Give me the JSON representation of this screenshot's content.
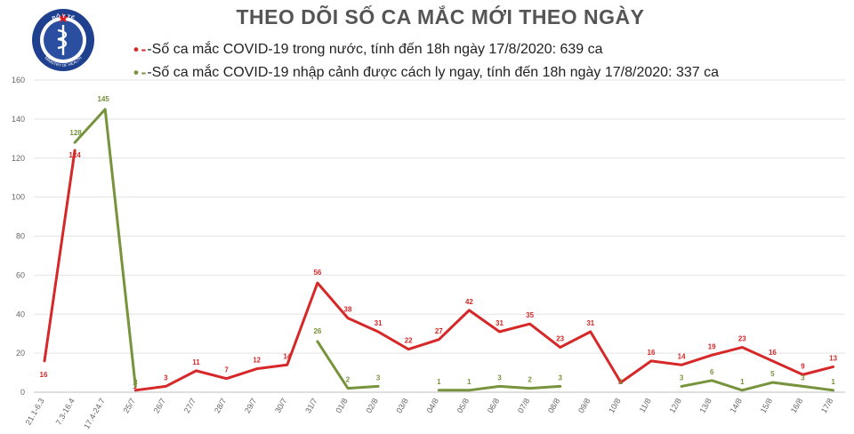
{
  "header": {
    "title": "THEO DÕI SỐ CA MẮC MỚI THEO NGÀY",
    "logo_text_top": "BỘ Y TẾ",
    "logo_text_bottom": "MINISTRY OF HEALTH"
  },
  "chart_data": {
    "type": "line",
    "title": "THEO DÕI SỐ CA MẮC MỚI THEO NGÀY",
    "xlabel": "",
    "ylabel": "",
    "ylim": [
      0,
      160
    ],
    "yticks": [
      0,
      20,
      40,
      60,
      80,
      100,
      120,
      140,
      160
    ],
    "grid": true,
    "legend_position": "top",
    "categories": [
      "21.1-6.3",
      "7.3-16.4",
      "17.4-24.7",
      "25/7",
      "26/7",
      "27/7",
      "28/7",
      "29/7",
      "30/7",
      "31/7",
      "01/8",
      "02/8",
      "03/8",
      "04/8",
      "05/8",
      "06/8",
      "07/8",
      "08/8",
      "09/8",
      "10/8",
      "11/8",
      "12/8",
      "13/8",
      "14/8",
      "15/8",
      "16/8",
      "17/8"
    ],
    "series": [
      {
        "name": "-Số ca mắc COVID-19 trong nước, tính đến 18h ngày 17/8/2020: 639 ca",
        "color": "#d62828",
        "values": [
          16,
          124,
          null,
          1,
          3,
          11,
          7,
          12,
          14,
          56,
          38,
          31,
          22,
          27,
          42,
          31,
          35,
          23,
          31,
          5,
          16,
          14,
          19,
          23,
          16,
          9,
          13
        ]
      },
      {
        "name": "-Số ca mắc COVID-19 nhập cảnh được cách ly ngay, tính đến 18h ngày 17/8/2020: 337 ca",
        "color": "#77933c",
        "values": [
          null,
          128,
          145,
          3,
          null,
          null,
          null,
          null,
          null,
          26,
          2,
          3,
          null,
          1,
          1,
          3,
          2,
          3,
          null,
          1,
          null,
          3,
          6,
          1,
          5,
          3,
          1
        ]
      }
    ]
  }
}
